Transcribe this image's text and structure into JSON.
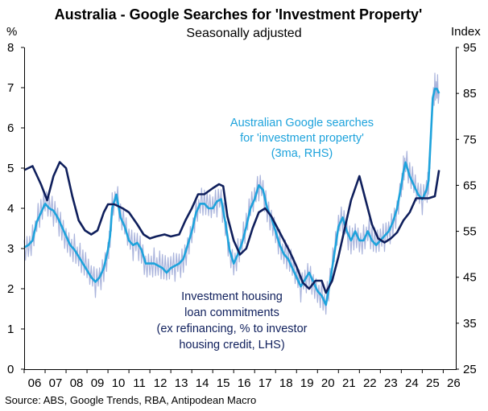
{
  "chart_data": {
    "type": "line",
    "title": "Australia - Google Searches for 'Investment Property'",
    "subtitle": "Seasonally adjusted",
    "left_axis": {
      "unit": "%",
      "ylim": [
        0,
        8
      ],
      "ticks": [
        0,
        1,
        2,
        3,
        4,
        5,
        6,
        7,
        8
      ]
    },
    "right_axis": {
      "unit": "Index",
      "ylim": [
        25,
        95
      ],
      "ticks": [
        25,
        35,
        45,
        55,
        65,
        75,
        85,
        95
      ]
    },
    "x_axis": {
      "xlim": [
        2006,
        2026.6
      ],
      "tick_labels": [
        "06",
        "07",
        "08",
        "09",
        "10",
        "11",
        "12",
        "13",
        "14",
        "15",
        "16",
        "17",
        "18",
        "19",
        "20",
        "21",
        "22",
        "23",
        "24",
        "25",
        "26"
      ],
      "tick_values": [
        2006,
        2007,
        2008,
        2009,
        2010,
        2011,
        2012,
        2013,
        2014,
        2015,
        2016,
        2017,
        2018,
        2019,
        2020,
        2021,
        2022,
        2023,
        2024,
        2025,
        2026
      ]
    },
    "annotations": {
      "google": [
        "Australian Google searches",
        "for 'investment  property'",
        "(3ma, RHS)"
      ],
      "loans": [
        "Investment housing",
        "loan commitments",
        "(ex refinancing, % to investor",
        "housing credit, LHS)"
      ]
    },
    "source": "Source: ABS, Google Trends, RBA, Antipodean Macro",
    "colors": {
      "loans": "#0f1f5c",
      "google_3ma": "#1ea3dc",
      "google_raw": "#aab4dc"
    },
    "series": [
      {
        "name": "Investment housing loan commitments (ex refinancing, % to investor housing credit, LHS)",
        "axis": "left",
        "x": [
          2006.0,
          2006.4,
          2006.8,
          2007.1,
          2007.4,
          2007.7,
          2008.0,
          2008.3,
          2008.6,
          2008.9,
          2009.2,
          2009.5,
          2009.8,
          2010.0,
          2010.3,
          2010.7,
          2011.0,
          2011.4,
          2011.7,
          2012.0,
          2012.3,
          2012.7,
          2013.0,
          2013.4,
          2013.7,
          2014.0,
          2014.3,
          2014.6,
          2015.0,
          2015.3,
          2015.5,
          2015.7,
          2016.0,
          2016.3,
          2016.6,
          2016.9,
          2017.2,
          2017.5,
          2017.8,
          2018.1,
          2018.4,
          2018.7,
          2019.0,
          2019.3,
          2019.6,
          2019.9,
          2020.2,
          2020.4,
          2020.7,
          2021.0,
          2021.3,
          2021.6,
          2022.0,
          2022.3,
          2022.6,
          2022.9,
          2023.2,
          2023.5,
          2023.8,
          2024.1,
          2024.4,
          2024.7,
          2025.0,
          2025.3,
          2025.6,
          2025.8
        ],
        "values": [
          4.95,
          5.05,
          4.6,
          4.2,
          4.8,
          5.15,
          5.0,
          4.3,
          3.7,
          3.45,
          3.35,
          3.45,
          3.9,
          4.1,
          4.1,
          4.0,
          3.9,
          3.6,
          3.35,
          3.25,
          3.3,
          3.35,
          3.3,
          3.35,
          3.7,
          4.0,
          4.35,
          4.35,
          4.5,
          4.6,
          4.55,
          3.8,
          3.2,
          2.85,
          3.0,
          3.5,
          3.9,
          4.0,
          3.8,
          3.5,
          3.2,
          2.9,
          2.55,
          2.15,
          2.0,
          2.2,
          2.2,
          1.9,
          2.2,
          2.8,
          3.5,
          4.2,
          4.8,
          4.2,
          3.6,
          3.25,
          3.15,
          3.25,
          3.4,
          3.7,
          3.9,
          4.25,
          4.25,
          4.25,
          4.3,
          4.95
        ]
      },
      {
        "name": "Australian Google searches for 'investment property' (3ma, RHS)",
        "axis": "right",
        "x": [
          2006.0,
          2006.2,
          2006.4,
          2006.6,
          2006.8,
          2007.0,
          2007.2,
          2007.4,
          2007.6,
          2007.8,
          2008.0,
          2008.2,
          2008.4,
          2008.6,
          2008.8,
          2009.0,
          2009.2,
          2009.4,
          2009.6,
          2009.8,
          2010.0,
          2010.1,
          2010.2,
          2010.4,
          2010.6,
          2010.8,
          2011.0,
          2011.2,
          2011.4,
          2011.6,
          2011.8,
          2012.0,
          2012.2,
          2012.4,
          2012.6,
          2012.8,
          2013.0,
          2013.2,
          2013.4,
          2013.6,
          2013.8,
          2014.0,
          2014.2,
          2014.4,
          2014.6,
          2014.8,
          2015.0,
          2015.2,
          2015.4,
          2015.6,
          2015.8,
          2016.0,
          2016.2,
          2016.4,
          2016.6,
          2016.8,
          2017.0,
          2017.2,
          2017.4,
          2017.6,
          2017.8,
          2018.0,
          2018.2,
          2018.4,
          2018.6,
          2018.8,
          2019.0,
          2019.2,
          2019.4,
          2019.6,
          2019.8,
          2020.0,
          2020.2,
          2020.4,
          2020.6,
          2020.8,
          2021.0,
          2021.2,
          2021.4,
          2021.6,
          2021.8,
          2022.0,
          2022.2,
          2022.4,
          2022.6,
          2022.8,
          2023.0,
          2023.2,
          2023.4,
          2023.6,
          2023.8,
          2024.0,
          2024.1,
          2024.2,
          2024.4,
          2024.6,
          2024.8,
          2025.0,
          2025.2,
          2025.3,
          2025.4,
          2025.5,
          2025.6,
          2025.7,
          2025.8
        ],
        "values": [
          51.5,
          52,
          53,
          57,
          59,
          61,
          60,
          59.5,
          58,
          56,
          54,
          52,
          51,
          49.5,
          48,
          46.5,
          45,
          44,
          45,
          47,
          51,
          54,
          60,
          63,
          58,
          56,
          53,
          52,
          52.5,
          51,
          48,
          48,
          48,
          47.5,
          47,
          46,
          47,
          47.5,
          48,
          49,
          52,
          55,
          59,
          61,
          61,
          60,
          60,
          61.5,
          62,
          57,
          51,
          48,
          50,
          52.5,
          56,
          60,
          62,
          65,
          64,
          60,
          58,
          55,
          52,
          50,
          49,
          47,
          45,
          43,
          44.5,
          46,
          44,
          42,
          41,
          39,
          44,
          50,
          56,
          58,
          55,
          53,
          55,
          53,
          53,
          55,
          53,
          52,
          53,
          54,
          55,
          57,
          60,
          65,
          68,
          70,
          67,
          65,
          63,
          62,
          64,
          66,
          75,
          84,
          86,
          86,
          85
        ]
      }
    ]
  }
}
